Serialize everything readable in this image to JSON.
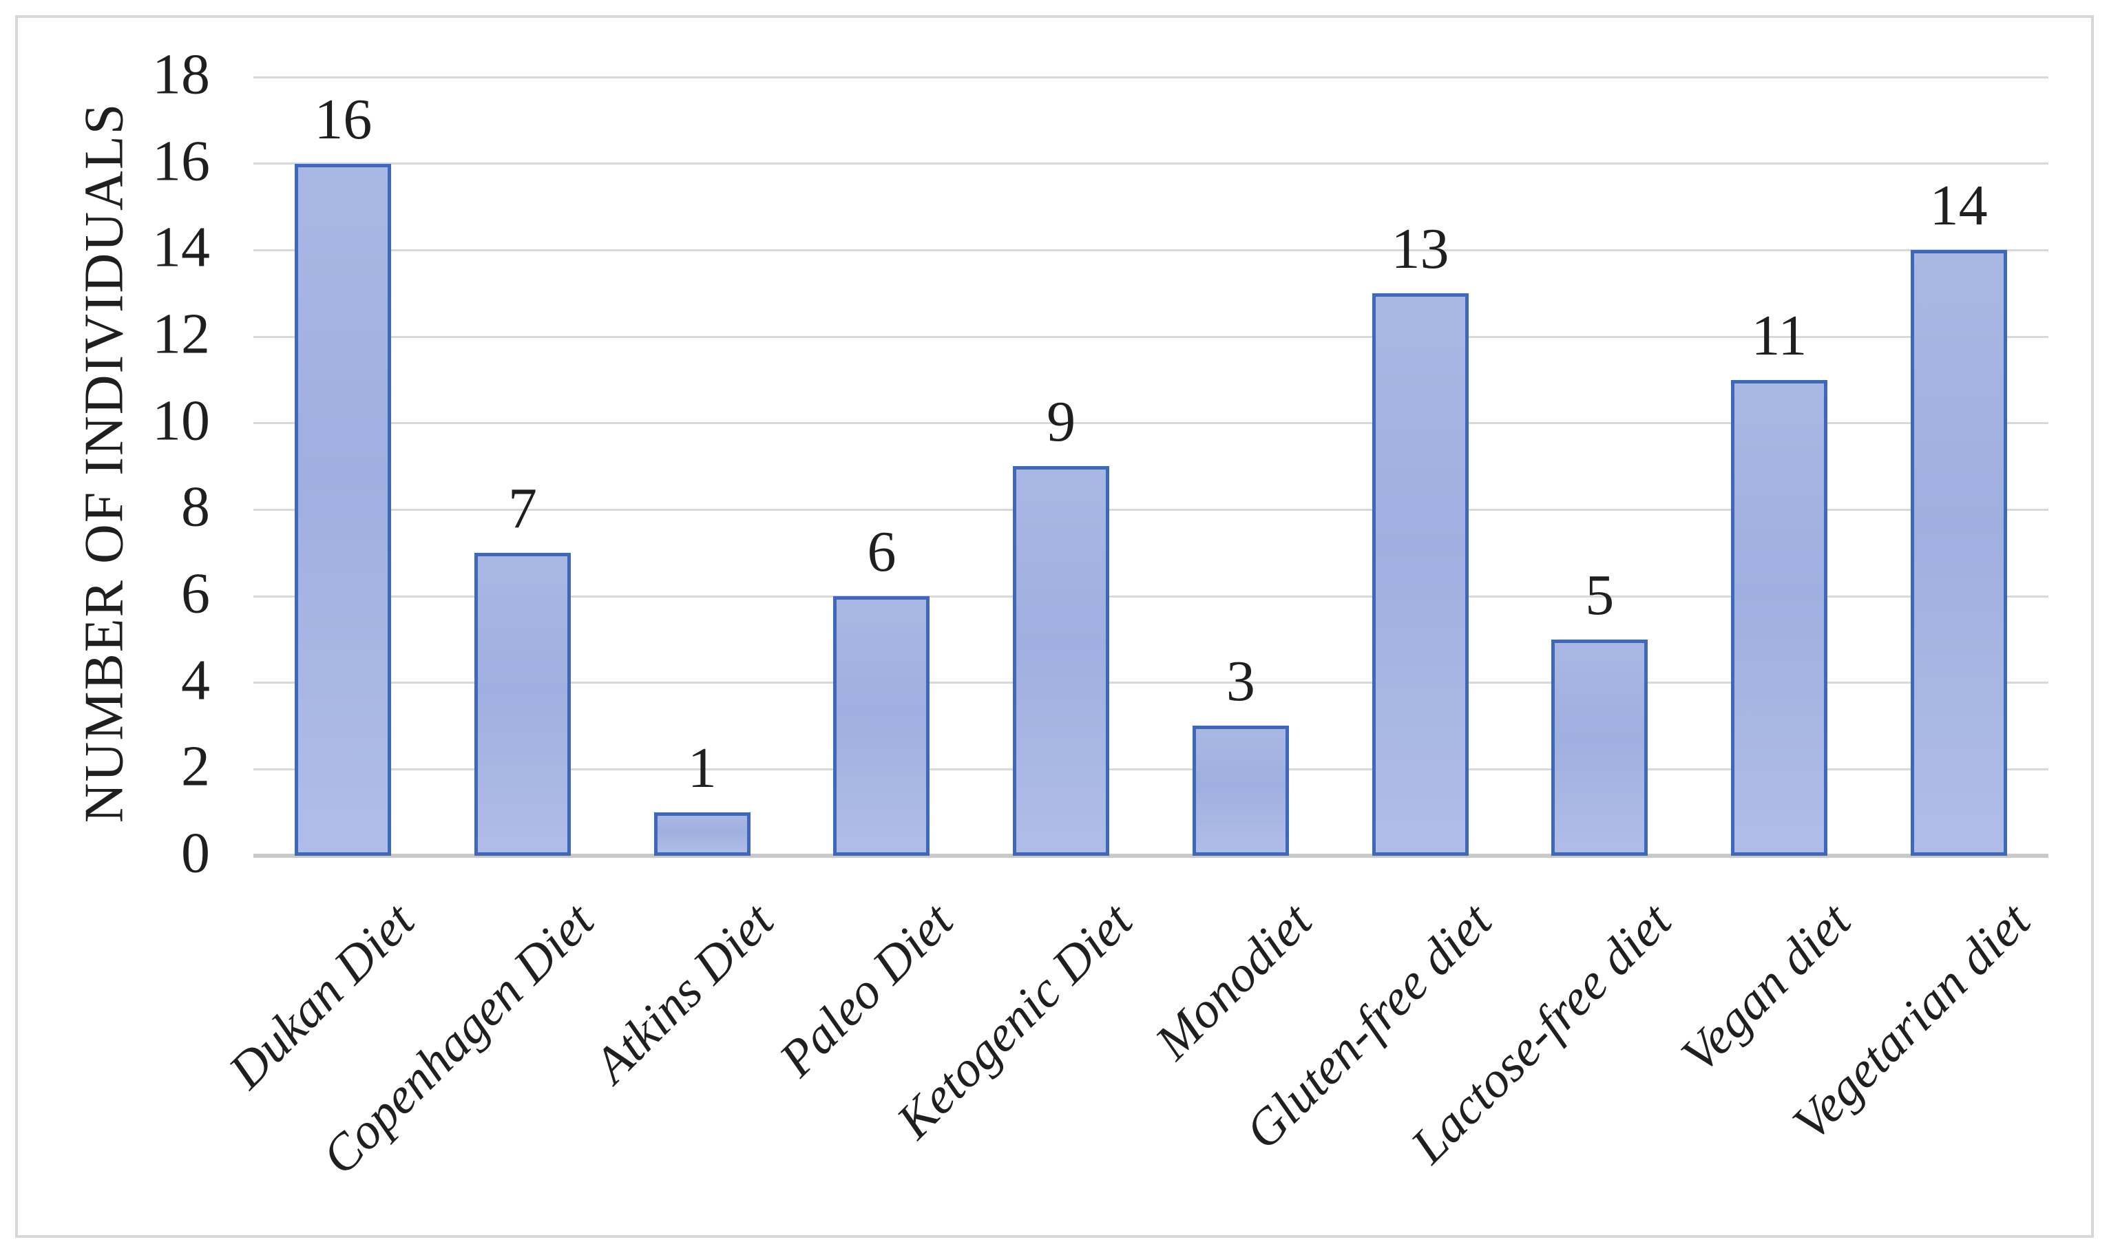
{
  "figure": {
    "background": "#ffffff",
    "frame_border_color": "#d7d7d7"
  },
  "chart_data": {
    "type": "bar",
    "title": "",
    "xlabel": "",
    "ylabel": "NUMBER OF INDIVIDUALS",
    "categories": [
      "Dukan Diet",
      "Copenhagen Diet",
      "Atkins Diet",
      "Paleo Diet",
      "Ketogenic Diet",
      "Monodiet",
      "Gluten-free diet",
      "Lactose-free diet",
      "Vegan diet",
      "Vegetarian diet"
    ],
    "values": [
      16,
      7,
      1,
      6,
      9,
      3,
      13,
      5,
      11,
      14
    ],
    "yticks": [
      0,
      2,
      4,
      6,
      8,
      10,
      12,
      14,
      16,
      18
    ],
    "ylim": [
      0,
      18
    ],
    "grid": true,
    "legend": false,
    "data_labels": true,
    "x_tick_rotation_deg": -45,
    "colors": {
      "bar_fill_top": "#a9b7e4",
      "bar_fill_mid": "#9fafdf",
      "bar_fill_bottom": "#b1bde8",
      "bar_border": "#3e68b9",
      "gridline": "#d9d9d9",
      "axis_line": "#c9c9c9",
      "text": "#1f1f1f",
      "frame": "#d7d7d7"
    }
  }
}
